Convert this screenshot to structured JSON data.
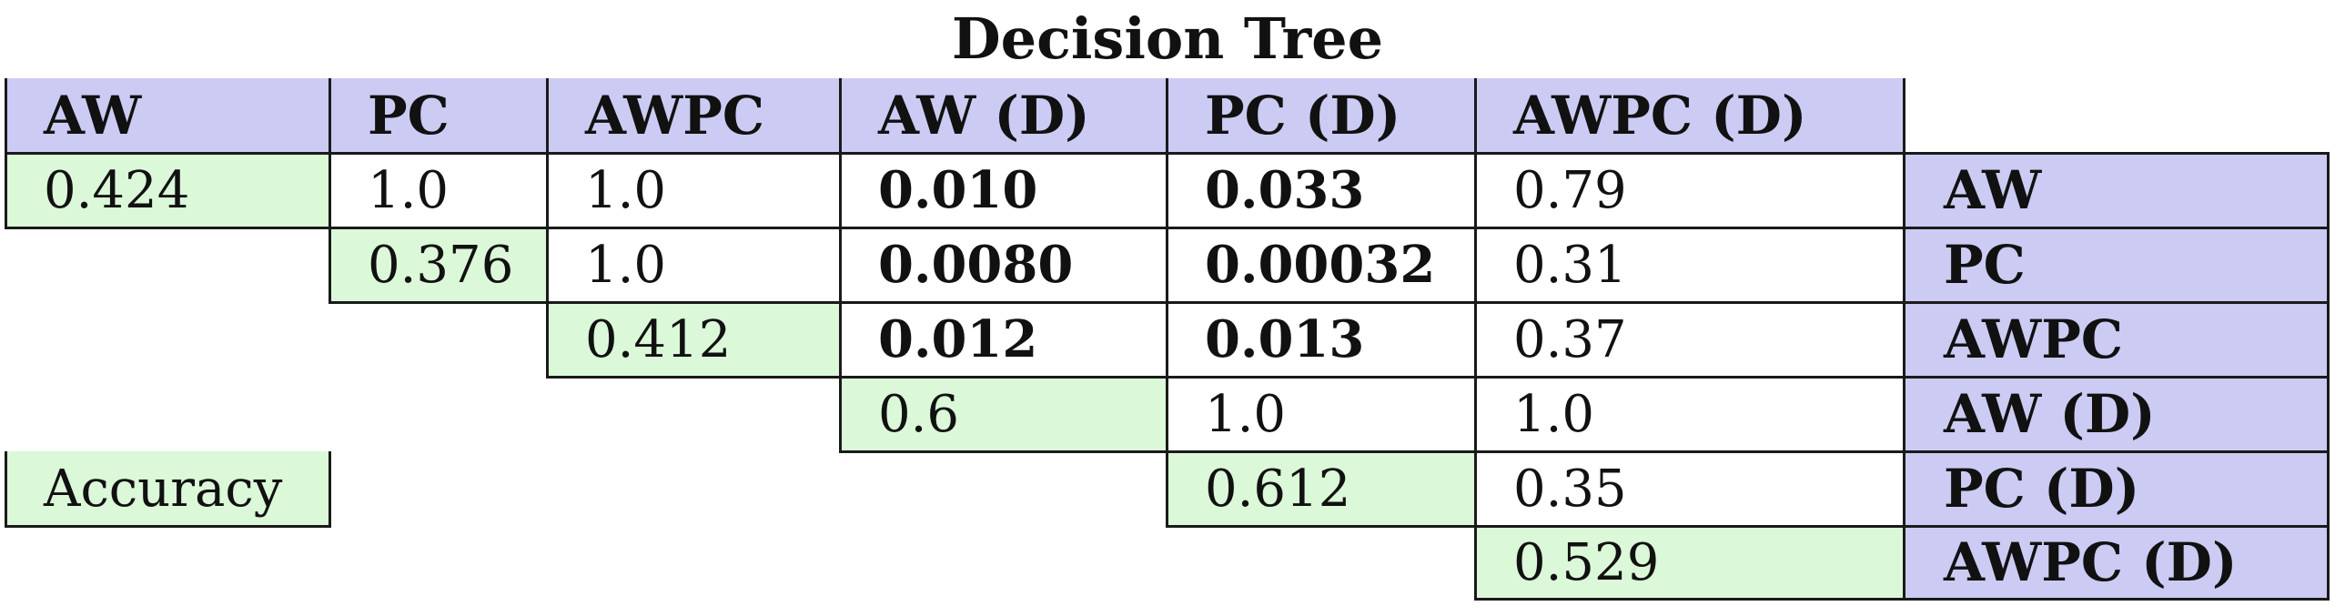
{
  "title": "Decision Tree",
  "columns": [
    "AW",
    "PC",
    "AWPC",
    "AW (D)",
    "PC (D)",
    "AWPC (D)"
  ],
  "rows": [
    "AW",
    "PC",
    "AWPC",
    "AW (D)",
    "PC (D)",
    "AWPC (D)"
  ],
  "accuracy": {
    "label": "Accuracy",
    "values": [
      "0.424",
      "0.376",
      "0.412",
      "0.6",
      "0.612",
      "0.529"
    ]
  },
  "cells": [
    [
      "1.0",
      "1.0",
      "0.010",
      "0.033",
      "0.79"
    ],
    [
      "1.0",
      "0.0080",
      "0.00032",
      "0.31"
    ],
    [
      "0.012",
      "0.013",
      "0.37"
    ],
    [
      "1.0",
      "1.0"
    ],
    [
      "0.35"
    ]
  ],
  "bold_cells": [
    [
      false,
      false,
      true,
      true,
      false
    ],
    [
      false,
      true,
      true,
      false
    ],
    [
      true,
      true,
      false
    ],
    [
      false,
      false
    ],
    [
      false
    ]
  ],
  "colors": {
    "header_fill": "#cccbf4",
    "diagonal_fill": "#dbf8d8",
    "line": "#1a1a1a",
    "text": "#111111"
  }
}
